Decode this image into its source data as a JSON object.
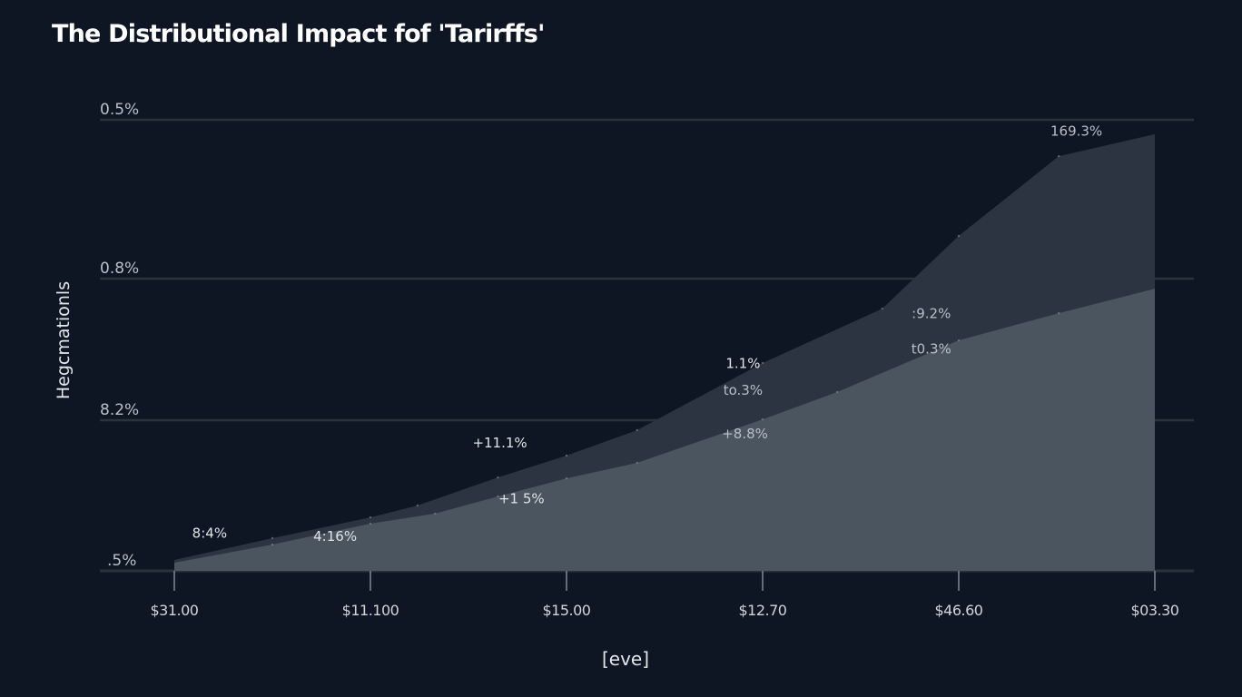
{
  "chart_data": {
    "type": "area",
    "title": "The Distributional Impact fof 'Tarirffs'",
    "xlabel": "[eve]",
    "ylabel": "Hegcmationls",
    "categories": [
      "$31.00",
      "$11.100",
      "$15.00",
      "$12.70",
      "$46.60",
      "$03.30"
    ],
    "y_ticks": [
      {
        "level": 0,
        "label": ".5%"
      },
      {
        "level": 1,
        "label": "8.2%"
      },
      {
        "level": 2,
        "label": "0.8%"
      },
      {
        "level": 3,
        "label": "0.5%"
      }
    ],
    "ylim": [
      0,
      3
    ],
    "grid": true,
    "legend": "none",
    "series": [
      {
        "name": "upper",
        "color": "#2b3440",
        "points": [
          {
            "x": 0,
            "y": 0.072
          },
          {
            "x": 0.5,
            "y": 0.217
          },
          {
            "x": 1,
            "y": 0.355
          },
          {
            "x": 1.24,
            "y": 0.434
          },
          {
            "x": 1.65,
            "y": 0.62
          },
          {
            "x": 2,
            "y": 0.765
          },
          {
            "x": 2.36,
            "y": 0.934
          },
          {
            "x": 3,
            "y": 1.404
          },
          {
            "x": 3.61,
            "y": 1.788
          },
          {
            "x": 4,
            "y": 2.269
          },
          {
            "x": 4.51,
            "y": 2.771
          },
          {
            "x": 5,
            "y": 2.909
          }
        ]
      },
      {
        "name": "lower",
        "color": "#4a5560",
        "points": [
          {
            "x": 0,
            "y": 0.054
          },
          {
            "x": 0.5,
            "y": 0.175
          },
          {
            "x": 1,
            "y": 0.313
          },
          {
            "x": 1.33,
            "y": 0.38
          },
          {
            "x": 1.65,
            "y": 0.494
          },
          {
            "x": 2,
            "y": 0.614
          },
          {
            "x": 2.36,
            "y": 0.717
          },
          {
            "x": 3,
            "y": 1.006
          },
          {
            "x": 3.38,
            "y": 1.199
          },
          {
            "x": 4,
            "y": 1.564
          },
          {
            "x": 4.51,
            "y": 1.756
          },
          {
            "x": 5,
            "y": 1.929
          }
        ]
      }
    ],
    "annotations": [
      {
        "text": "8:4%",
        "x": 0.18,
        "y": 0.22,
        "style": "bright"
      },
      {
        "text": "4:16%",
        "x": 0.82,
        "y": 0.2,
        "style": "bright"
      },
      {
        "text": "+11.1%",
        "x": 1.66,
        "y": 0.82,
        "style": "bright"
      },
      {
        "text": "+1 5%",
        "x": 1.77,
        "y": 0.45,
        "style": "bright"
      },
      {
        "text": "1.1%",
        "x": 2.9,
        "y": 1.37,
        "style": "bright"
      },
      {
        "text": "to.3%",
        "x": 2.9,
        "y": 1.18,
        "style": "dim"
      },
      {
        "text": "+8.8%",
        "x": 2.91,
        "y": 0.88,
        "style": "dim"
      },
      {
        "text": ":9.2%",
        "x": 3.86,
        "y": 1.72,
        "style": "dim"
      },
      {
        "text": "t0.3%",
        "x": 3.86,
        "y": 1.47,
        "style": "dim"
      },
      {
        "text": "169.3%",
        "x": 4.6,
        "y": 2.9,
        "style": "dim"
      }
    ]
  },
  "colors": {
    "background": "#0e1623",
    "gridline": "#2a323c",
    "upper_area": "#2b3440",
    "lower_area": "#4a5560"
  }
}
